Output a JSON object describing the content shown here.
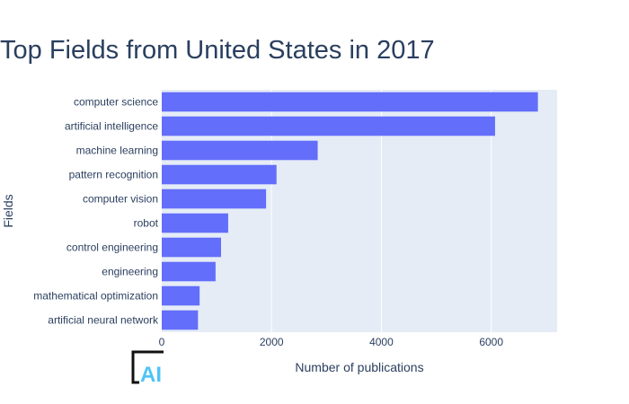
{
  "chart_data": {
    "type": "bar",
    "orientation": "horizontal",
    "title": "Top Fields from United States in 2017",
    "xlabel": "Number of publications",
    "ylabel": "Fields",
    "categories": [
      "computer science",
      "artificial intelligence",
      "machine learning",
      "pattern recognition",
      "computer vision",
      "robot",
      "control engineering",
      "engineering",
      "mathematical optimization",
      "artificial neural network"
    ],
    "values": [
      6850,
      6070,
      2840,
      2090,
      1900,
      1210,
      1080,
      980,
      690,
      660
    ],
    "xlim": [
      0,
      7200
    ],
    "xticks": [
      0,
      2000,
      4000,
      6000
    ],
    "xtick_labels": [
      "0",
      "2000",
      "4000",
      "6000"
    ],
    "grid": true,
    "colors": {
      "bar": "#636efa",
      "plot_bg": "#e5ecf6",
      "text": "#2a3f5f",
      "grid": "#ffffff"
    }
  },
  "logo": {
    "text": "AI",
    "name": "ai-logo"
  }
}
